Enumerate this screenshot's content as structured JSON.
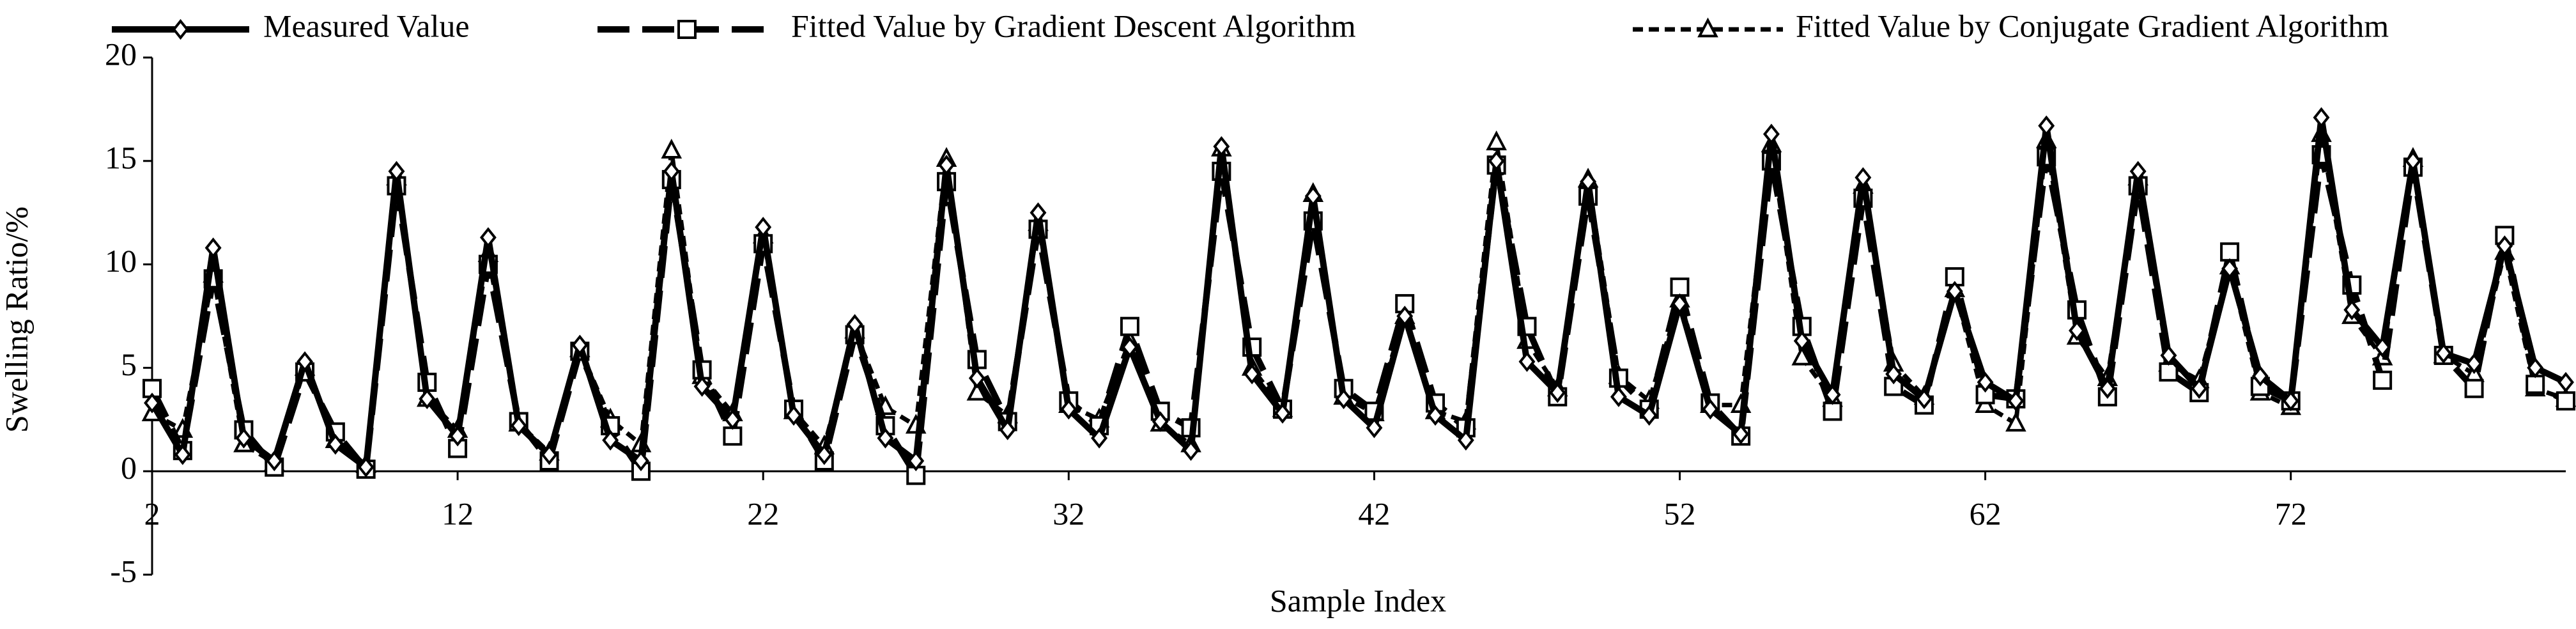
{
  "chart_data": {
    "type": "line",
    "x_label": "Sample Index",
    "y_label": "Swelling Ratio/%",
    "x": [
      2,
      3,
      4,
      5,
      6,
      7,
      8,
      9,
      10,
      11,
      12,
      13,
      14,
      15,
      16,
      17,
      18,
      19,
      20,
      21,
      22,
      23,
      24,
      25,
      26,
      27,
      28,
      29,
      30,
      31,
      32,
      33,
      34,
      35,
      36,
      37,
      38,
      39,
      40,
      41,
      42,
      43,
      44,
      45,
      46,
      47,
      48,
      49,
      50,
      51,
      52,
      53,
      54,
      55,
      56,
      57,
      58,
      59,
      60,
      61,
      62,
      63,
      64,
      65,
      66,
      67,
      68,
      69,
      70,
      71,
      72,
      73,
      74,
      75,
      76,
      77,
      78,
      79,
      80,
      81
    ],
    "xlim": [
      2,
      81
    ],
    "xticks": [
      2,
      12,
      22,
      32,
      42,
      52,
      62,
      72
    ],
    "ylim": [
      -5,
      20
    ],
    "yticks": [
      -5,
      0,
      5,
      10,
      15,
      20
    ],
    "series": [
      {
        "name": "Measured Value",
        "color": "#000000",
        "marker": "diamond",
        "dash": "solid",
        "values": [
          3.3,
          0.8,
          10.8,
          1.6,
          0.5,
          5.3,
          1.3,
          0.2,
          14.5,
          3.5,
          1.7,
          11.3,
          2.2,
          0.8,
          6.1,
          1.5,
          0.5,
          14.5,
          4.1,
          2.5,
          11.8,
          2.7,
          0.8,
          7.1,
          1.6,
          0.5,
          14.8,
          4.5,
          2.0,
          12.5,
          3.0,
          1.6,
          6.0,
          2.4,
          1.0,
          15.7,
          4.7,
          2.8,
          13.3,
          3.5,
          2.1,
          7.5,
          2.7,
          1.5,
          15.0,
          5.3,
          3.8,
          14.0,
          3.6,
          2.7,
          8.1,
          3.0,
          1.8,
          16.3,
          6.3,
          3.7,
          14.2,
          4.7,
          3.5,
          8.7,
          4.3,
          3.4,
          16.7,
          6.8,
          4.0,
          14.5,
          5.6,
          4.0,
          9.8,
          4.6,
          3.4,
          17.1,
          7.8,
          6.0,
          15.0,
          5.7,
          5.2,
          10.9,
          5.0,
          4.3
        ]
      },
      {
        "name": "Fitted Value by Gradient Descent Algorithm",
        "color": "#000000",
        "marker": "square",
        "dash": "long",
        "values": [
          4.0,
          1.0,
          9.3,
          2.0,
          0.2,
          4.8,
          1.9,
          0.1,
          13.8,
          4.3,
          1.1,
          10.0,
          2.4,
          0.5,
          5.8,
          2.2,
          0.0,
          14.1,
          4.9,
          1.7,
          11.0,
          3.0,
          0.5,
          6.6,
          2.2,
          -0.2,
          14.0,
          5.4,
          2.4,
          11.7,
          3.4,
          2.2,
          7.0,
          2.9,
          2.1,
          14.5,
          6.0,
          3.0,
          12.1,
          4.0,
          2.9,
          8.1,
          3.3,
          2.1,
          14.8,
          7.0,
          3.6,
          13.3,
          4.5,
          3.0,
          8.9,
          3.3,
          1.7,
          15.0,
          7.0,
          2.9,
          13.2,
          4.1,
          3.2,
          9.4,
          3.7,
          3.5,
          15.2,
          7.8,
          3.6,
          13.8,
          4.8,
          3.8,
          10.6,
          4.1,
          3.4,
          15.3,
          9.0,
          4.4,
          14.7,
          5.6,
          4.0,
          11.4,
          4.2,
          3.4
        ]
      },
      {
        "name": "Fitted Value by Conjugate Gradient Algorithm",
        "color": "#000000",
        "marker": "triangle",
        "dash": "short",
        "values": [
          2.8,
          2.0,
          9.5,
          1.3,
          0.4,
          5.0,
          1.5,
          0.3,
          14.2,
          3.5,
          2.0,
          10.5,
          2.3,
          0.9,
          5.9,
          2.5,
          1.3,
          15.5,
          4.6,
          2.8,
          11.4,
          2.9,
          1.2,
          6.8,
          3.1,
          2.2,
          15.1,
          3.8,
          2.7,
          12.0,
          3.2,
          2.5,
          6.3,
          2.3,
          1.3,
          15.6,
          5.0,
          3.0,
          13.4,
          3.6,
          2.8,
          7.5,
          2.9,
          2.4,
          15.9,
          6.3,
          4.0,
          14.1,
          4.6,
          3.4,
          8.3,
          3.2,
          3.2,
          15.8,
          5.5,
          3.5,
          13.8,
          5.2,
          3.6,
          8.8,
          3.2,
          2.3,
          16.0,
          6.5,
          4.5,
          14.2,
          5.2,
          4.4,
          9.9,
          3.8,
          3.1,
          16.3,
          7.5,
          5.5,
          15.1,
          5.6,
          4.7,
          10.6,
          4.0,
          3.5
        ]
      }
    ]
  }
}
